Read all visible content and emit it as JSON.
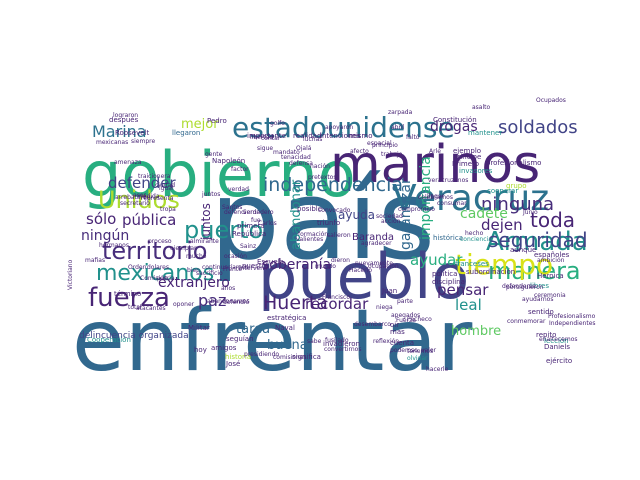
{
  "palette": {
    "purple": "#482575",
    "indigo": "#414487",
    "blue": "#2c728e",
    "teal": "#21918c",
    "green": "#28ae80",
    "lime": "#5ec962",
    "yellowgreen": "#addc30",
    "yellow": "#d8e219",
    "darkblue": "#31688e",
    "violet": "#472d7b",
    "deep": "#3b528b"
  },
  "words": [
    {
      "text": "país",
      "c": "darkblue"
    },
    {
      "text": "enfrentar",
      "c": "darkblue"
    },
    {
      "text": "gobierno",
      "c": "green"
    },
    {
      "text": "marinos",
      "c": "purple"
    },
    {
      "text": "pueblo",
      "c": "indigo"
    },
    {
      "text": "Veracruz",
      "c": "blue"
    },
    {
      "text": "estadounidense",
      "c": "blue"
    },
    {
      "text": "Armada",
      "c": "teal"
    },
    {
      "text": "manera",
      "c": "green"
    },
    {
      "text": "tiempo",
      "c": "yellow"
    },
    {
      "text": "fuerza",
      "c": "purple"
    },
    {
      "text": "territorio",
      "c": "violet"
    },
    {
      "text": "mexicanos",
      "c": "teal"
    },
    {
      "text": "Unidos",
      "c": "yellowgreen"
    },
    {
      "text": "puerto",
      "c": "teal"
    },
    {
      "text": "independencia",
      "c": "darkblue"
    },
    {
      "text": "soldados",
      "c": "indigo"
    },
    {
      "text": "ninguna",
      "c": "violet"
    },
    {
      "text": "seguridad",
      "c": "indigo"
    },
    {
      "text": "toda",
      "c": "purple"
    },
    {
      "text": "Huerta",
      "c": "purple"
    },
    {
      "text": "paz",
      "c": "violet"
    },
    {
      "text": "defender",
      "c": "indigo"
    },
    {
      "text": "Marina",
      "c": "blue"
    },
    {
      "text": "sólo",
      "c": "purple"
    },
    {
      "text": "pública",
      "c": "purple"
    },
    {
      "text": "ningún",
      "c": "violet"
    },
    {
      "text": "extranjero",
      "c": "purple"
    },
    {
      "text": "soberanía",
      "c": "purple"
    },
    {
      "text": "recordar",
      "c": "purple"
    },
    {
      "text": "leal",
      "c": "teal"
    },
    {
      "text": "pensar",
      "c": "purple"
    },
    {
      "text": "ayudar",
      "c": "green"
    },
    {
      "text": "dejen",
      "c": "purple"
    },
    {
      "text": "cadete",
      "c": "lime"
    },
    {
      "text": "garantizar",
      "c": "darkblue"
    },
    {
      "text": "importancia",
      "c": "green"
    },
    {
      "text": "abandonar",
      "c": "teal"
    },
    {
      "text": "ayuda",
      "c": "indigo"
    },
    {
      "text": "drogas",
      "c": "purple"
    },
    {
      "text": "mejor",
      "c": "yellowgreen"
    },
    {
      "text": "juntos",
      "c": "purple"
    },
    {
      "text": "tarea",
      "c": "darkblue"
    },
    {
      "text": "buena",
      "c": "darkblue"
    },
    {
      "text": "hombre",
      "c": "lime"
    },
    {
      "text": "Baranda",
      "c": "purple"
    },
    {
      "text": "delincuencia organizada",
      "c": "indigo"
    },
    {
      "text": "grupo",
      "c": "yellowgreen"
    },
    {
      "text": "ejemplo",
      "c": "purple"
    },
    {
      "text": "principe",
      "c": "purple"
    },
    {
      "text": "profesionalismo",
      "c": "purple"
    },
    {
      "text": "Primero",
      "c": "purple"
    },
    {
      "text": "invasores",
      "c": "teal"
    },
    {
      "text": "intenciones",
      "c": "purple"
    },
    {
      "text": "llegaron",
      "c": "darkblue"
    },
    {
      "text": "Naval",
      "c": "purple"
    },
    {
      "text": "José",
      "c": "purple"
    },
    {
      "text": "Militar",
      "c": "purple"
    },
    {
      "text": "invadieron",
      "c": "purple"
    },
    {
      "text": "convertirnos",
      "c": "purple"
    },
    {
      "text": "Constitución",
      "c": "purple"
    },
    {
      "text": "mantener",
      "c": "teal"
    },
    {
      "text": "Pedro",
      "c": "purple"
    },
    {
      "text": "Cooperación",
      "c": "teal"
    },
    {
      "text": "repito",
      "c": "purple"
    },
    {
      "text": "lección",
      "c": "teal"
    },
    {
      "text": "Daniels",
      "c": "purple"
    },
    {
      "text": "ejército",
      "c": "purple"
    },
    {
      "text": "historia",
      "c": "yellowgreen"
    },
    {
      "text": "histórica",
      "c": "darkblue"
    },
    {
      "text": "política",
      "c": "purple"
    },
    {
      "text": "disciplina",
      "c": "purple"
    },
    {
      "text": "subordinación",
      "c": "purple"
    },
    {
      "text": "franceses",
      "c": "teal"
    },
    {
      "text": "aunque",
      "c": "purple"
    },
    {
      "text": "españoles",
      "c": "purple"
    },
    {
      "text": "Heroica",
      "c": "purple"
    },
    {
      "text": "libres",
      "c": "teal"
    },
    {
      "text": "posible",
      "c": "purple"
    },
    {
      "text": "triunfo",
      "c": "purple"
    },
    {
      "text": "hoy",
      "c": "purple"
    },
    {
      "text": "cuenta",
      "c": "purple"
    },
    {
      "text": "poderoso",
      "c": "purple"
    },
    {
      "text": "valer",
      "c": "purple"
    },
    {
      "text": "oir",
      "c": "purple"
    },
    {
      "text": "mas",
      "c": "purple"
    },
    {
      "text": "Victoriano",
      "c": "purple"
    },
    {
      "text": "Napoleón",
      "c": "purple"
    },
    {
      "text": "Roosevelt",
      "c": "purple"
    },
    {
      "text": "importante",
      "c": "purple"
    },
    {
      "text": "realidad",
      "c": "purple"
    },
    {
      "text": "mismo",
      "c": "purple"
    },
    {
      "text": "después",
      "c": "purple"
    },
    {
      "text": "primera",
      "c": "purple"
    },
    {
      "text": "República",
      "c": "purple"
    },
    {
      "text": "Escuela",
      "c": "purple"
    },
    {
      "text": "nuestra",
      "c": "purple"
    },
    {
      "text": "significa",
      "c": "purple"
    },
    {
      "text": "consumar",
      "c": "purple"
    },
    {
      "text": "cooperar",
      "c": "teal"
    },
    {
      "text": "celebramos",
      "c": "purple"
    },
    {
      "text": "olvidar",
      "c": "teal"
    },
    {
      "text": "Hacerlo",
      "c": "purple"
    },
    {
      "text": "valientes",
      "c": "purple"
    },
    {
      "text": "estratégica",
      "c": "purple"
    },
    {
      "text": "amigos",
      "c": "purple"
    },
    {
      "text": "salieron",
      "c": "purple"
    },
    {
      "text": "seguían",
      "c": "purple"
    },
    {
      "text": "conmemorar",
      "c": "purple"
    },
    {
      "text": "sentido",
      "c": "purple"
    },
    {
      "text": "contar",
      "c": "purple"
    },
    {
      "text": "sigue",
      "c": "purple"
    },
    {
      "text": "conciencia",
      "c": "teal"
    },
    {
      "text": "Juan",
      "c": "purple"
    },
    {
      "text": "dieron",
      "c": "purple"
    },
    {
      "text": "defendió",
      "c": "purple"
    },
    {
      "text": "término",
      "c": "purple"
    },
    {
      "text": "proceso",
      "c": "purple"
    },
    {
      "text": "almirante",
      "c": "purple"
    },
    {
      "text": "mafias",
      "c": "purple"
    },
    {
      "text": "total",
      "c": "purple"
    },
    {
      "text": "comisiones",
      "c": "purple"
    },
    {
      "text": "hermanos",
      "c": "purple"
    },
    {
      "text": "Santos",
      "c": "purple"
    },
    {
      "text": "Carlos",
      "c": "purple"
    },
    {
      "text": "dolares",
      "c": "purple"
    },
    {
      "text": "afecto",
      "c": "purple"
    },
    {
      "text": "Comisión",
      "c": "purple"
    },
    {
      "text": "sacrificio",
      "c": "purple"
    },
    {
      "text": "sabe",
      "c": "purple"
    },
    {
      "text": "atacantes",
      "c": "purple"
    },
    {
      "text": "mundo",
      "c": "purple"
    },
    {
      "text": "llegar",
      "c": "purple"
    },
    {
      "text": "secretario",
      "c": "purple"
    },
    {
      "text": "ocupación",
      "c": "purple"
    },
    {
      "text": "verdadero",
      "c": "purple"
    },
    {
      "text": "Sainz",
      "c": "purple"
    },
    {
      "text": "Frente",
      "c": "purple"
    },
    {
      "text": "golfo",
      "c": "purple"
    },
    {
      "text": "faltó",
      "c": "purple"
    },
    {
      "text": "mucho",
      "c": "purple"
    },
    {
      "text": "apoyaron",
      "c": "purple"
    },
    {
      "text": "patria",
      "c": "purple"
    },
    {
      "text": "oponer",
      "c": "purple"
    },
    {
      "text": "años",
      "c": "purple"
    },
    {
      "text": "Orden",
      "c": "purple"
    },
    {
      "text": "tropa",
      "c": "purple"
    },
    {
      "text": "arrebataron",
      "c": "purple"
    },
    {
      "text": "continuaríamos",
      "c": "purple"
    },
    {
      "text": "ciudad",
      "c": "purple"
    },
    {
      "text": "mandato",
      "c": "purple"
    },
    {
      "text": "defensa",
      "c": "purple"
    },
    {
      "text": "espacial",
      "c": "purple"
    },
    {
      "text": "factor",
      "c": "purple"
    },
    {
      "text": "intervenir",
      "c": "purple"
    },
    {
      "text": "libertad",
      "c": "purple"
    },
    {
      "text": "gente",
      "c": "purple"
    },
    {
      "text": "igual",
      "c": "purple"
    },
    {
      "text": "Ojalá",
      "c": "purple"
    },
    {
      "text": "verdad",
      "c": "purple"
    },
    {
      "text": "fue",
      "c": "purple"
    },
    {
      "text": "siempre",
      "c": "purple"
    },
    {
      "text": "medida",
      "c": "purple"
    },
    {
      "text": "lograron",
      "c": "purple"
    },
    {
      "text": "traicionera",
      "c": "purple"
    },
    {
      "text": "luchas",
      "c": "purple"
    },
    {
      "text": "nación",
      "c": "purple"
    },
    {
      "text": "pretextos",
      "c": "purple"
    },
    {
      "text": "defendieron",
      "c": "purple"
    },
    {
      "text": "representa",
      "c": "purple"
    },
    {
      "text": "formación",
      "c": "purple"
    },
    {
      "text": "juntos",
      "c": "purple"
    },
    {
      "text": "amenaza",
      "c": "purple"
    },
    {
      "text": "bien",
      "c": "purple"
    },
    {
      "text": "ocasión",
      "c": "purple"
    },
    {
      "text": "compromiso",
      "c": "purple"
    },
    {
      "text": "apegados",
      "c": "purple"
    },
    {
      "text": "acción",
      "c": "purple"
    },
    {
      "text": "Fuerza",
      "c": "purple"
    },
    {
      "text": "reflexión",
      "c": "purple"
    },
    {
      "text": "niega",
      "c": "purple"
    },
    {
      "text": "tenemos",
      "c": "purple"
    },
    {
      "text": "Francisco",
      "c": "purple"
    },
    {
      "text": "parte",
      "c": "purple"
    },
    {
      "text": "hacerle",
      "c": "purple"
    },
    {
      "text": "Pacheco",
      "c": "purple"
    },
    {
      "text": "fusilado",
      "c": "purple"
    },
    {
      "text": "agradecer",
      "c": "purple"
    },
    {
      "text": "sociedad",
      "c": "purple"
    },
    {
      "text": "principio",
      "c": "purple"
    },
    {
      "text": "Arle",
      "c": "purple"
    },
    {
      "text": "trabajo",
      "c": "purple"
    },
    {
      "text": "zarpada",
      "c": "purple"
    },
    {
      "text": "asalto",
      "c": "purple"
    },
    {
      "text": "Junio",
      "c": "purple"
    },
    {
      "text": "Ocupados",
      "c": "purple"
    },
    {
      "text": "ambición",
      "c": "purple"
    },
    {
      "text": "ayudarnos",
      "c": "purple"
    },
    {
      "text": "Independientes",
      "c": "purple"
    },
    {
      "text": "Profesionalismo",
      "c": "purple"
    },
    {
      "text": "persiguieron",
      "c": "purple"
    },
    {
      "text": "ceremonia",
      "c": "purple"
    },
    {
      "text": "desembarco",
      "c": "purple"
    },
    {
      "text": "abril",
      "c": "purple"
    },
    {
      "text": "veracruzanos",
      "c": "purple"
    },
    {
      "text": "hecho",
      "c": "purple"
    },
    {
      "text": "defenderse",
      "c": "purple"
    },
    {
      "text": "enaltecemos",
      "c": "purple"
    },
    {
      "text": "mexicanas",
      "c": "purple"
    },
    {
      "text": "esos",
      "c": "purple"
    },
    {
      "text": "ejemplar",
      "c": "purple"
    },
    {
      "text": "abandonamos",
      "c": "purple"
    },
    {
      "text": "presidiendo",
      "c": "purple"
    },
    {
      "text": "tenacidad",
      "c": "purple"
    },
    {
      "text": "convocado",
      "c": "purple"
    },
    {
      "text": "nuevamente",
      "c": "purple"
    }
  ]
}
